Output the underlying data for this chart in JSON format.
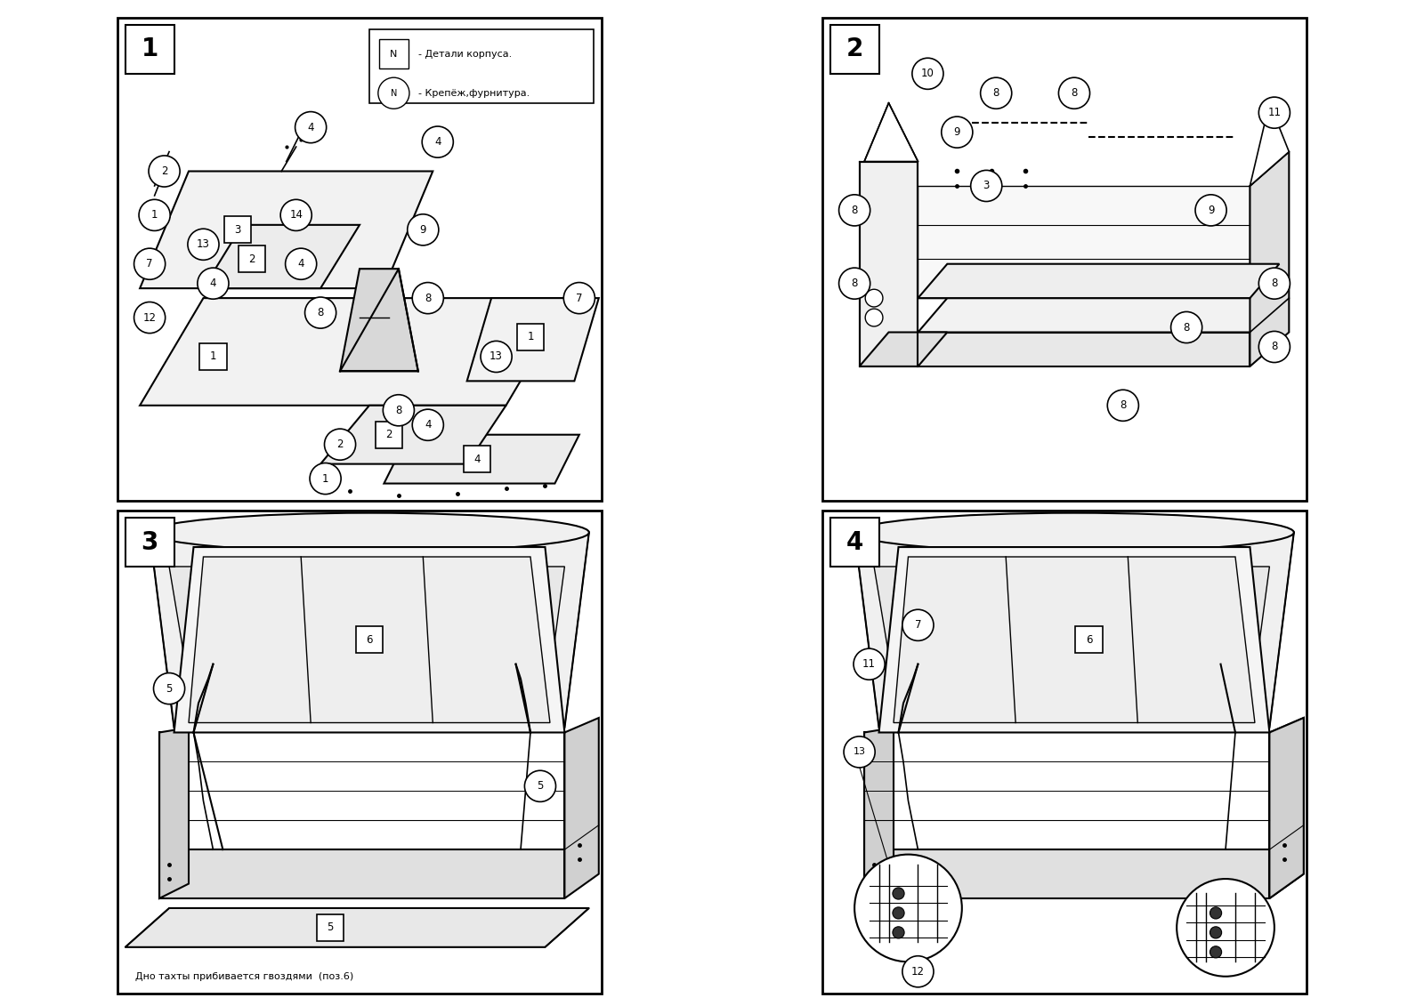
{
  "figure_bg": "#ffffff",
  "legend_text_1": "N)- Детали корпуса.",
  "legend_text_2": "(N)- Крепёж,фурнитура.",
  "bottom_note": "Дно тахты прибивается гвоздями  (поз.6)"
}
